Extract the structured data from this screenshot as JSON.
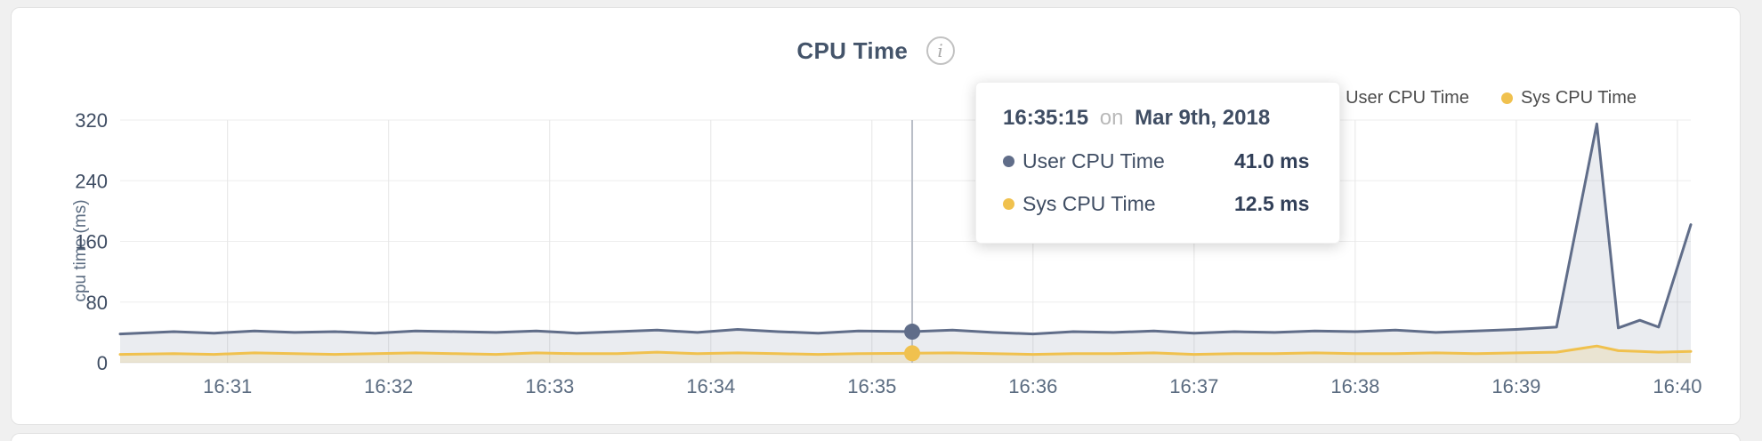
{
  "chart_data": {
    "type": "area",
    "title": "CPU Time",
    "info_icon": "i",
    "ylabel": "cpu time (ms)",
    "ylim": [
      0,
      320
    ],
    "yticks": [
      0,
      80,
      160,
      240,
      320
    ],
    "xlim_seconds_after_1630": [
      20,
      605
    ],
    "xticks": [
      {
        "t": 60,
        "label": "16:31"
      },
      {
        "t": 120,
        "label": "16:32"
      },
      {
        "t": 180,
        "label": "16:33"
      },
      {
        "t": 240,
        "label": "16:34"
      },
      {
        "t": 300,
        "label": "16:35"
      },
      {
        "t": 360,
        "label": "16:36"
      },
      {
        "t": 420,
        "label": "16:37"
      },
      {
        "t": 480,
        "label": "16:38"
      },
      {
        "t": 540,
        "label": "16:39"
      },
      {
        "t": 600,
        "label": "16:40"
      }
    ],
    "grid": true,
    "legend": {
      "position": "top-right",
      "items": [
        {
          "label": "User CPU Time",
          "color": "#606d89"
        },
        {
          "label": "Sys CPU Time",
          "color": "#f0c14e"
        }
      ]
    },
    "series": [
      {
        "name": "User CPU Time",
        "color": "#606d89",
        "fill": "rgba(96,109,137,0.13)",
        "points": [
          [
            20,
            38
          ],
          [
            40,
            41
          ],
          [
            55,
            39
          ],
          [
            70,
            42
          ],
          [
            85,
            40
          ],
          [
            100,
            41
          ],
          [
            115,
            39
          ],
          [
            130,
            42
          ],
          [
            145,
            41
          ],
          [
            160,
            40
          ],
          [
            175,
            42
          ],
          [
            190,
            39
          ],
          [
            205,
            41
          ],
          [
            220,
            43
          ],
          [
            235,
            40
          ],
          [
            250,
            44
          ],
          [
            265,
            41
          ],
          [
            280,
            39
          ],
          [
            295,
            42
          ],
          [
            315,
            41
          ],
          [
            330,
            43
          ],
          [
            345,
            40
          ],
          [
            360,
            38
          ],
          [
            375,
            41
          ],
          [
            390,
            40
          ],
          [
            405,
            42
          ],
          [
            420,
            39
          ],
          [
            435,
            41
          ],
          [
            450,
            40
          ],
          [
            465,
            42
          ],
          [
            480,
            41
          ],
          [
            495,
            43
          ],
          [
            510,
            40
          ],
          [
            525,
            42
          ],
          [
            540,
            44
          ],
          [
            555,
            47
          ],
          [
            570,
            315
          ],
          [
            578,
            46
          ],
          [
            586,
            56
          ],
          [
            593,
            47
          ],
          [
            605,
            182
          ]
        ]
      },
      {
        "name": "Sys CPU Time",
        "color": "#f0c14e",
        "fill": "rgba(240,193,78,0.18)",
        "points": [
          [
            20,
            11
          ],
          [
            40,
            12
          ],
          [
            55,
            11
          ],
          [
            70,
            13
          ],
          [
            85,
            12
          ],
          [
            100,
            11
          ],
          [
            115,
            12
          ],
          [
            130,
            13
          ],
          [
            145,
            12
          ],
          [
            160,
            11
          ],
          [
            175,
            13
          ],
          [
            190,
            12
          ],
          [
            205,
            12
          ],
          [
            220,
            14
          ],
          [
            235,
            12
          ],
          [
            250,
            13
          ],
          [
            265,
            12
          ],
          [
            280,
            11
          ],
          [
            295,
            12
          ],
          [
            315,
            12.5
          ],
          [
            330,
            13
          ],
          [
            345,
            12
          ],
          [
            360,
            11
          ],
          [
            375,
            12
          ],
          [
            390,
            12
          ],
          [
            405,
            13
          ],
          [
            420,
            11
          ],
          [
            435,
            12
          ],
          [
            450,
            12
          ],
          [
            465,
            13
          ],
          [
            480,
            12
          ],
          [
            495,
            12
          ],
          [
            510,
            13
          ],
          [
            525,
            12
          ],
          [
            540,
            13
          ],
          [
            555,
            14
          ],
          [
            570,
            22
          ],
          [
            578,
            16
          ],
          [
            586,
            15
          ],
          [
            593,
            14
          ],
          [
            605,
            15
          ]
        ]
      }
    ],
    "tooltip": {
      "time": "16:35:15",
      "separator": "on",
      "date": "Mar 9th, 2018",
      "t": 315,
      "rows": [
        {
          "label": "User CPU Time",
          "value": "41.0 ms",
          "color": "#606d89"
        },
        {
          "label": "Sys CPU Time",
          "value": "12.5 ms",
          "color": "#f0c14e"
        }
      ]
    },
    "crosshair_color": "#b9bec7"
  }
}
